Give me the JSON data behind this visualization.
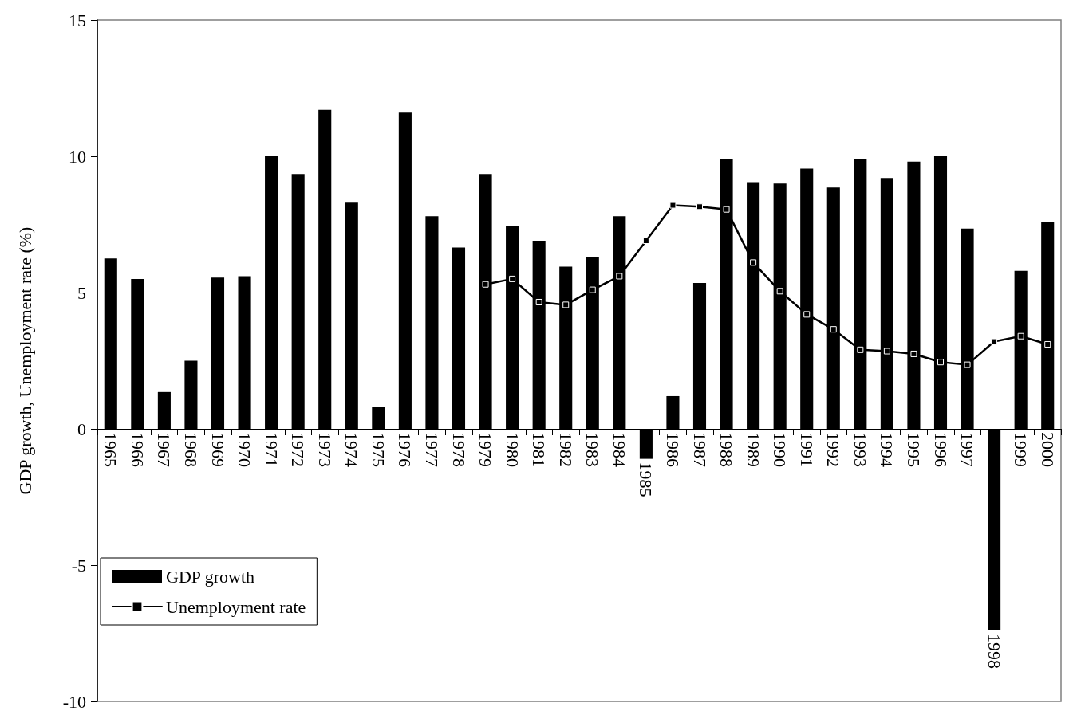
{
  "chart_data": {
    "type": "bar",
    "ylabel": "GDP growth, Unemployment rate (%)",
    "categories": [
      "1965",
      "1966",
      "1967",
      "1968",
      "1969",
      "1970",
      "1971",
      "1972",
      "1973",
      "1974",
      "1975",
      "1976",
      "1977",
      "1978",
      "1979",
      "1980",
      "1981",
      "1982",
      "1983",
      "1984",
      "1985",
      "1986",
      "1987",
      "1988",
      "1989",
      "1990",
      "1991",
      "1992",
      "1993",
      "1994",
      "1995",
      "1996",
      "1997",
      "1998",
      "1999",
      "2000"
    ],
    "series": [
      {
        "name": "GDP growth",
        "color": "#000000",
        "values": [
          6.25,
          5.5,
          1.35,
          2.5,
          5.55,
          5.6,
          10.0,
          9.35,
          11.7,
          8.3,
          0.8,
          11.6,
          7.8,
          6.65,
          9.35,
          7.45,
          6.9,
          5.95,
          6.3,
          7.8,
          -1.1,
          1.2,
          5.35,
          9.9,
          9.05,
          9.0,
          9.55,
          8.85,
          9.9,
          9.2,
          9.8,
          10.0,
          7.35,
          -7.4,
          5.8,
          7.6
        ]
      },
      {
        "name": "Unemployment rate",
        "type": "line",
        "color": "#000000",
        "marker": "square",
        "line_style": "solid",
        "values": [
          null,
          null,
          null,
          null,
          null,
          null,
          null,
          null,
          null,
          null,
          null,
          null,
          null,
          null,
          5.3,
          5.5,
          4.65,
          4.55,
          5.1,
          5.6,
          6.9,
          8.2,
          8.15,
          8.05,
          6.1,
          5.05,
          4.2,
          3.65,
          2.9,
          2.85,
          2.75,
          2.45,
          2.35,
          3.2,
          3.4,
          3.1
        ]
      }
    ],
    "ylim": [
      -10,
      15
    ],
    "yticks": [
      -10,
      -5,
      0,
      5,
      10,
      15
    ],
    "grid": false,
    "legend": "bottom left"
  }
}
